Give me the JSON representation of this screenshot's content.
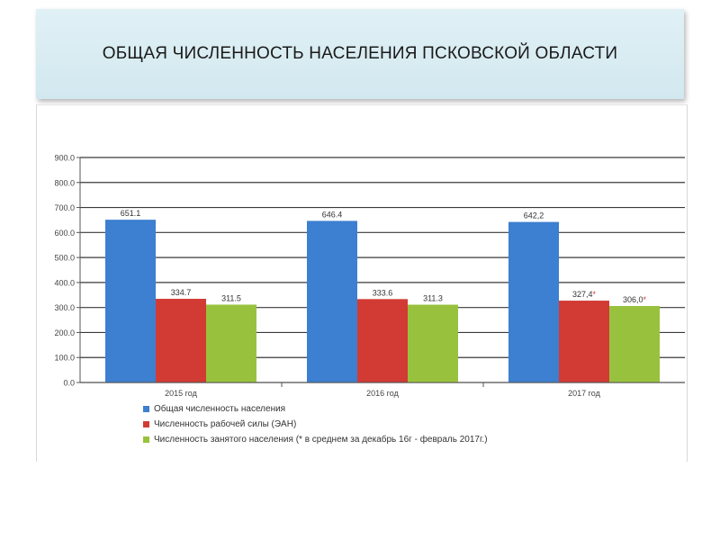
{
  "header": {
    "title": "ОБЩАЯ ЧИСЛЕННОСТЬ НАСЕЛЕНИЯ ПСКОВСКОЙ ОБЛАСТИ"
  },
  "chart_data": {
    "type": "bar",
    "title": "ОБЩАЯ ЧИСЛЕННОСТЬ НАСЕЛЕНИЯ ПСКОВСКОЙ ОБЛАСТИ",
    "categories": [
      "2015 год",
      "2016 год",
      "2017 год"
    ],
    "ylim": [
      0,
      900
    ],
    "yticks": [
      "0.0",
      "100.0",
      "200.0",
      "300.0",
      "400.0",
      "500.0",
      "600.0",
      "700.0",
      "800.0",
      "900.0"
    ],
    "grid": true,
    "legend_position": "bottom",
    "series": [
      {
        "name": "Общая численность населения",
        "color": "#3d7fd0",
        "values": [
          651.1,
          646.4,
          642.2
        ],
        "labels": [
          "651.1",
          "646.4",
          "642,2"
        ]
      },
      {
        "name": "Численность рабочей силы (ЭАН)",
        "color": "#d23a34",
        "values": [
          334.7,
          333.6,
          327.4
        ],
        "labels": [
          "334.7",
          "333.6",
          "327,4*"
        ]
      },
      {
        "name": "Численность занятого населения (* в среднем за декабрь 16г - февраль 2017г.)",
        "color": "#98c23e",
        "values": [
          311.5,
          311.3,
          306.0
        ],
        "labels": [
          "311.5",
          "311.3",
          "306,0*"
        ]
      }
    ]
  }
}
